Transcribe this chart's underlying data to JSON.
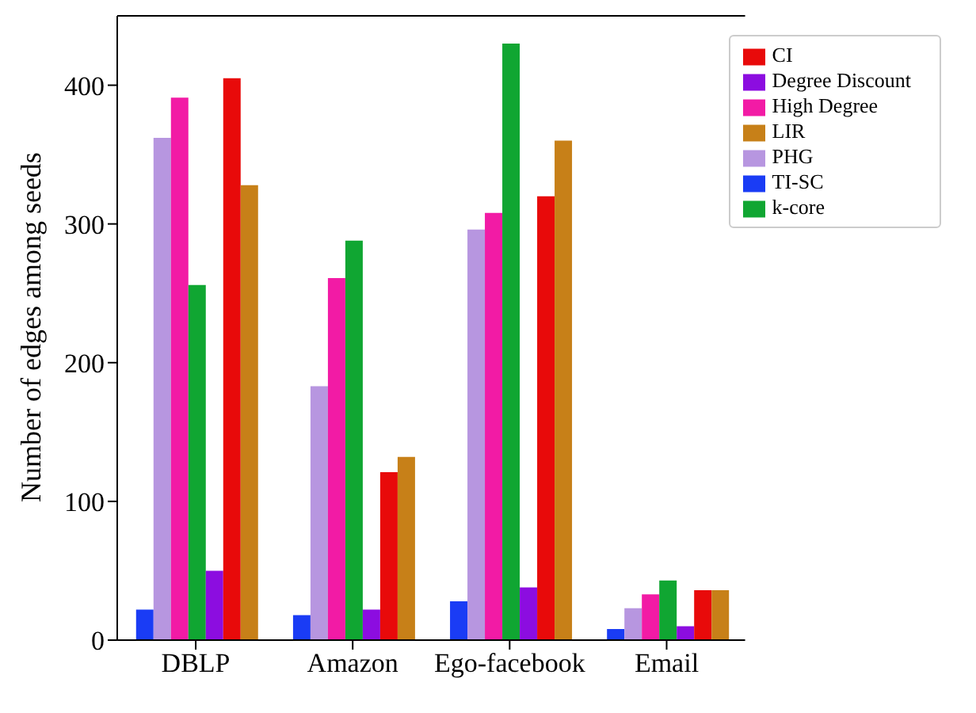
{
  "chart_data": {
    "type": "bar",
    "ylabel": "Number of edges among seeds",
    "categories": [
      "DBLP",
      "Amazon",
      "Ego-facebook",
      "Email"
    ],
    "series": [
      {
        "name": "TI-SC",
        "color": "#1a3cf5",
        "values": [
          22,
          18,
          28,
          8
        ]
      },
      {
        "name": "PHG",
        "color": "#b796e0",
        "values": [
          362,
          183,
          296,
          23
        ]
      },
      {
        "name": "High Degree",
        "color": "#f21ba5",
        "values": [
          391,
          261,
          308,
          33
        ]
      },
      {
        "name": "k-core",
        "color": "#10a632",
        "values": [
          256,
          288,
          430,
          43
        ]
      },
      {
        "name": "Degree Discount",
        "color": "#8c0de0",
        "values": [
          50,
          22,
          38,
          10
        ]
      },
      {
        "name": "CI",
        "color": "#e80a0a",
        "values": [
          405,
          121,
          320,
          36
        ]
      },
      {
        "name": "LIR",
        "color": "#c78018",
        "values": [
          328,
          132,
          360,
          36
        ]
      }
    ],
    "ylim": [
      0,
      450
    ],
    "yticks": [
      0,
      100,
      200,
      300,
      400
    ],
    "grid": false,
    "legend": "top right"
  }
}
